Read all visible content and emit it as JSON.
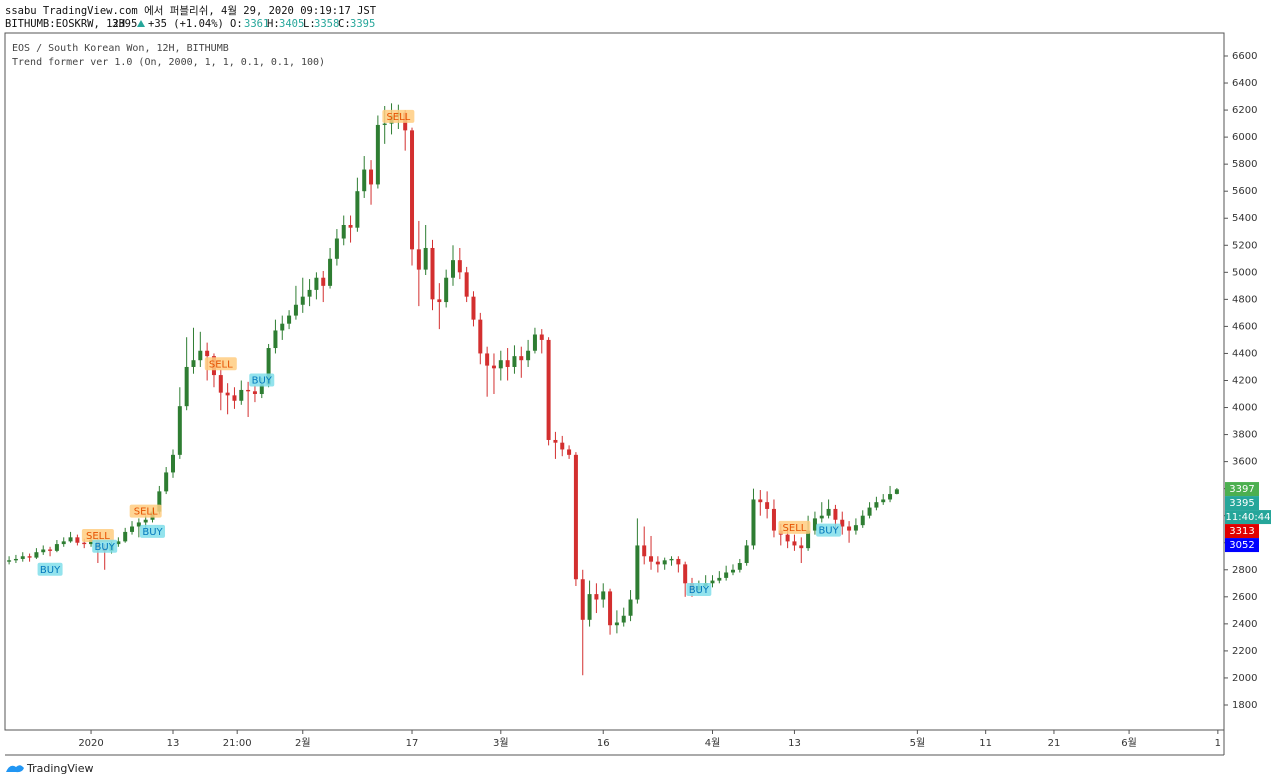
{
  "header": {
    "line1": "ssabu TradingView.com 에서 퍼블리쉬, 4월 29, 2020 09:19:17 JST",
    "symbol": "BITHUMB:EOSKRW, 12H",
    "last": "3395",
    "change": "+35 (+1.04%)",
    "o": "3361",
    "h": "3405",
    "l": "3358",
    "c": "3395"
  },
  "footer": {
    "brand": "TradingView"
  },
  "chart_data": {
    "type": "candlestick",
    "title": "EOS / South Korean Won, 12H, BITHUMB",
    "subtitle": "Trend former ver 1.0 (On, 2000, 1, 1, 0.1, 0.1, 100)",
    "up_color": "#2e7d32",
    "down_color": "#d32f2f",
    "xlim": [
      -12.6,
      165.9
    ],
    "ylim": [
      1615,
      6770
    ],
    "xticks": [
      {
        "value": 0,
        "label": "2020"
      },
      {
        "value": 12,
        "label": "13"
      },
      {
        "value": 21.4,
        "label": "21:00"
      },
      {
        "value": 31,
        "label": "2월"
      },
      {
        "value": 47,
        "label": "17"
      },
      {
        "value": 60,
        "label": "3월"
      },
      {
        "value": 75,
        "label": "16"
      },
      {
        "value": 91,
        "label": "4월"
      },
      {
        "value": 103,
        "label": "13"
      },
      {
        "value": 121,
        "label": "5월"
      },
      {
        "value": 131,
        "label": "11"
      },
      {
        "value": 141,
        "label": "21"
      },
      {
        "value": 152,
        "label": "6월"
      },
      {
        "value": 165,
        "label": "1"
      }
    ],
    "yticks": [
      1800,
      2000,
      2200,
      2400,
      2600,
      2800,
      3000,
      3200,
      3400,
      3600,
      3800,
      4000,
      4200,
      4400,
      4600,
      4800,
      5000,
      5200,
      5400,
      5600,
      5800,
      6000,
      6200,
      6400,
      6600
    ],
    "x": [
      -12,
      -11,
      -10,
      -9,
      -8,
      -7,
      -6,
      -5,
      -4,
      -3,
      -2,
      -1,
      0,
      1,
      2,
      3,
      4,
      5,
      6,
      7,
      8,
      9,
      10,
      11,
      12,
      13,
      14,
      15,
      16,
      17,
      18,
      19,
      20,
      21,
      22,
      23,
      24,
      25,
      26,
      27,
      28,
      29,
      30,
      31,
      32,
      33,
      34,
      35,
      36,
      37,
      38,
      39,
      40,
      41,
      42,
      43,
      44,
      45,
      46,
      47,
      48,
      49,
      50,
      51,
      52,
      53,
      54,
      55,
      56,
      57,
      58,
      59,
      60,
      61,
      62,
      63,
      64,
      65,
      66,
      67,
      68,
      69,
      70,
      71,
      72,
      73,
      74,
      75,
      76,
      77,
      78,
      79,
      80,
      81,
      82,
      83,
      84,
      85,
      86,
      87,
      88,
      89,
      90,
      91,
      92,
      93,
      94,
      95,
      96,
      97,
      98,
      99,
      100,
      101,
      102,
      103,
      104,
      105,
      106,
      107,
      108,
      109,
      110,
      111,
      112,
      113,
      114,
      115,
      116,
      117,
      118
    ],
    "ohlc": [
      [
        2860,
        2900,
        2840,
        2870
      ],
      [
        2870,
        2910,
        2850,
        2880
      ],
      [
        2880,
        2930,
        2860,
        2900
      ],
      [
        2900,
        2920,
        2860,
        2890
      ],
      [
        2890,
        2960,
        2880,
        2930
      ],
      [
        2930,
        2980,
        2910,
        2950
      ],
      [
        2950,
        2970,
        2900,
        2940
      ],
      [
        2940,
        3020,
        2930,
        2990
      ],
      [
        2990,
        3040,
        2970,
        3010
      ],
      [
        3010,
        3080,
        3000,
        3040
      ],
      [
        3040,
        3060,
        2980,
        3000
      ],
      [
        3000,
        3030,
        2960,
        2990
      ],
      [
        2990,
        3050,
        2970,
        3020
      ],
      [
        3020,
        3040,
        2850,
        2960
      ],
      [
        2960,
        2990,
        2800,
        2940
      ],
      [
        2940,
        3010,
        2920,
        2990
      ],
      [
        2990,
        3040,
        2970,
        3010
      ],
      [
        3010,
        3110,
        3000,
        3080
      ],
      [
        3080,
        3160,
        3060,
        3120
      ],
      [
        3120,
        3180,
        3040,
        3150
      ],
      [
        3150,
        3200,
        3090,
        3170
      ],
      [
        3170,
        3260,
        3150,
        3230
      ],
      [
        3230,
        3420,
        3210,
        3380
      ],
      [
        3380,
        3560,
        3360,
        3520
      ],
      [
        3520,
        3690,
        3480,
        3650
      ],
      [
        3650,
        4150,
        3620,
        4010
      ],
      [
        4010,
        4520,
        3980,
        4300
      ],
      [
        4300,
        4590,
        4250,
        4350
      ],
      [
        4350,
        4560,
        4300,
        4420
      ],
      [
        4420,
        4480,
        4200,
        4380
      ],
      [
        4380,
        4400,
        4150,
        4240
      ],
      [
        4240,
        4280,
        3980,
        4110
      ],
      [
        4110,
        4180,
        3950,
        4090
      ],
      [
        4090,
        4150,
        3990,
        4050
      ],
      [
        4050,
        4200,
        4020,
        4130
      ],
      [
        4130,
        4190,
        3930,
        4120
      ],
      [
        4120,
        4160,
        4040,
        4100
      ],
      [
        4100,
        4220,
        4070,
        4170
      ],
      [
        4170,
        4470,
        4150,
        4440
      ],
      [
        4440,
        4650,
        4400,
        4570
      ],
      [
        4570,
        4680,
        4500,
        4620
      ],
      [
        4620,
        4720,
        4580,
        4680
      ],
      [
        4680,
        4900,
        4650,
        4760
      ],
      [
        4760,
        4960,
        4700,
        4820
      ],
      [
        4820,
        4950,
        4750,
        4870
      ],
      [
        4870,
        5000,
        4800,
        4960
      ],
      [
        4960,
        5010,
        4780,
        4900
      ],
      [
        4900,
        5180,
        4880,
        5100
      ],
      [
        5100,
        5320,
        5050,
        5250
      ],
      [
        5250,
        5420,
        5200,
        5350
      ],
      [
        5350,
        5420,
        5220,
        5330
      ],
      [
        5330,
        5700,
        5300,
        5600
      ],
      [
        5600,
        5860,
        5550,
        5760
      ],
      [
        5760,
        5830,
        5500,
        5650
      ],
      [
        5650,
        6160,
        5620,
        6090
      ],
      [
        6090,
        6230,
        5950,
        6100
      ],
      [
        6100,
        6250,
        6020,
        6160
      ],
      [
        6160,
        6240,
        6060,
        6180
      ],
      [
        6180,
        6200,
        5900,
        6050
      ],
      [
        6050,
        6070,
        5050,
        5170
      ],
      [
        5170,
        5380,
        4750,
        5020
      ],
      [
        5020,
        5350,
        4980,
        5180
      ],
      [
        5180,
        5240,
        4720,
        4800
      ],
      [
        4800,
        4920,
        4580,
        4780
      ],
      [
        4780,
        5020,
        4740,
        4960
      ],
      [
        4960,
        5200,
        4900,
        5090
      ],
      [
        5090,
        5180,
        4950,
        5000
      ],
      [
        5000,
        5040,
        4780,
        4820
      ],
      [
        4820,
        4860,
        4600,
        4650
      ],
      [
        4650,
        4700,
        4320,
        4400
      ],
      [
        4400,
        4450,
        4080,
        4310
      ],
      [
        4310,
        4400,
        4100,
        4290
      ],
      [
        4290,
        4420,
        4200,
        4350
      ],
      [
        4350,
        4440,
        4200,
        4300
      ],
      [
        4300,
        4460,
        4250,
        4380
      ],
      [
        4380,
        4450,
        4220,
        4350
      ],
      [
        4350,
        4500,
        4300,
        4420
      ],
      [
        4420,
        4590,
        4400,
        4540
      ],
      [
        4540,
        4580,
        4400,
        4500
      ],
      [
        4500,
        4520,
        3720,
        3760
      ],
      [
        3760,
        3820,
        3620,
        3740
      ],
      [
        3740,
        3790,
        3640,
        3690
      ],
      [
        3690,
        3720,
        3620,
        3650
      ],
      [
        3650,
        3670,
        2680,
        2730
      ],
      [
        2730,
        2800,
        2020,
        2430
      ],
      [
        2430,
        2720,
        2380,
        2620
      ],
      [
        2620,
        2700,
        2480,
        2580
      ],
      [
        2580,
        2700,
        2520,
        2640
      ],
      [
        2640,
        2660,
        2320,
        2390
      ],
      [
        2390,
        2500,
        2330,
        2410
      ],
      [
        2410,
        2520,
        2380,
        2460
      ],
      [
        2460,
        2650,
        2420,
        2580
      ],
      [
        2580,
        3180,
        2550,
        2980
      ],
      [
        2980,
        3120,
        2840,
        2900
      ],
      [
        2900,
        3050,
        2800,
        2860
      ],
      [
        2860,
        2900,
        2780,
        2840
      ],
      [
        2840,
        2890,
        2800,
        2870
      ],
      [
        2870,
        2900,
        2830,
        2880
      ],
      [
        2880,
        2900,
        2780,
        2840
      ],
      [
        2840,
        2860,
        2600,
        2700
      ],
      [
        2700,
        2740,
        2600,
        2650
      ],
      [
        2650,
        2720,
        2620,
        2680
      ],
      [
        2680,
        2760,
        2650,
        2700
      ],
      [
        2700,
        2760,
        2670,
        2720
      ],
      [
        2720,
        2790,
        2700,
        2740
      ],
      [
        2740,
        2830,
        2720,
        2780
      ],
      [
        2780,
        2840,
        2760,
        2800
      ],
      [
        2800,
        2880,
        2780,
        2850
      ],
      [
        2850,
        3020,
        2830,
        2980
      ],
      [
        2980,
        3400,
        2950,
        3320
      ],
      [
        3320,
        3390,
        3200,
        3300
      ],
      [
        3300,
        3380,
        3180,
        3250
      ],
      [
        3250,
        3320,
        3040,
        3090
      ],
      [
        3090,
        3140,
        2980,
        3060
      ],
      [
        3060,
        3100,
        2960,
        3010
      ],
      [
        3010,
        3060,
        2940,
        2980
      ],
      [
        2980,
        3040,
        2850,
        2960
      ],
      [
        2960,
        3200,
        2940,
        3090
      ],
      [
        3090,
        3230,
        3060,
        3180
      ],
      [
        3180,
        3300,
        3150,
        3200
      ],
      [
        3200,
        3320,
        3180,
        3250
      ],
      [
        3250,
        3280,
        3080,
        3170
      ],
      [
        3170,
        3230,
        3060,
        3120
      ],
      [
        3120,
        3160,
        3000,
        3090
      ],
      [
        3090,
        3180,
        3060,
        3130
      ],
      [
        3130,
        3240,
        3110,
        3200
      ],
      [
        3200,
        3300,
        3180,
        3260
      ],
      [
        3260,
        3340,
        3240,
        3300
      ],
      [
        3300,
        3360,
        3280,
        3320
      ],
      [
        3320,
        3420,
        3300,
        3360
      ],
      [
        3361,
        3405,
        3358,
        3395
      ]
    ],
    "signals": [
      {
        "x": -6,
        "price": 2800,
        "label": "BUY"
      },
      {
        "x": 1,
        "price": 3050,
        "label": "SELL"
      },
      {
        "x": 2,
        "price": 2970,
        "label": "BUY"
      },
      {
        "x": 8,
        "price": 3230,
        "label": "SELL"
      },
      {
        "x": 9,
        "price": 3080,
        "label": "BUY"
      },
      {
        "x": 19,
        "price": 4320,
        "label": "SELL"
      },
      {
        "x": 25,
        "price": 4200,
        "label": "BUY"
      },
      {
        "x": 45,
        "price": 6150,
        "label": "SELL"
      },
      {
        "x": 89,
        "price": 2650,
        "label": "BUY"
      },
      {
        "x": 103,
        "price": 3110,
        "label": "SELL"
      },
      {
        "x": 108,
        "price": 3090,
        "label": "BUY"
      }
    ],
    "signal_colors": {
      "BUY": "#80deea",
      "SELL": "#ffcc80"
    },
    "price_badges": [
      {
        "value": 3397,
        "color": "#4caf50"
      },
      {
        "value": 3395,
        "color": "#26a69a"
      },
      {
        "value": 3313,
        "color": "#e00000"
      },
      {
        "value": 3052,
        "color": "#0000ff"
      }
    ],
    "countdown": "11:40:44"
  }
}
